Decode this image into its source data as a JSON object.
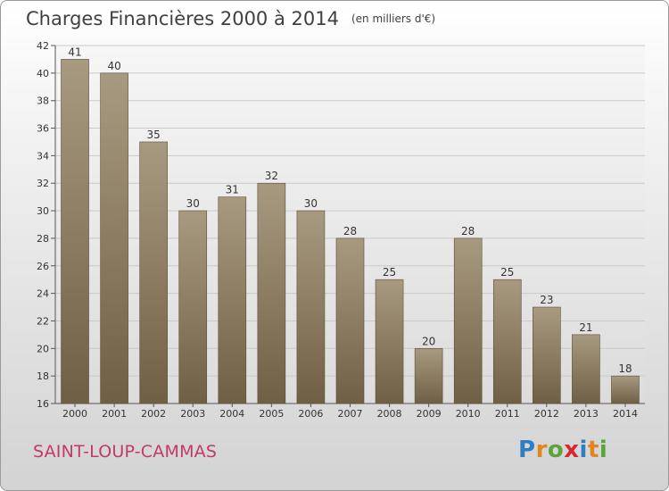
{
  "header": {
    "title": "Charges Financières 2000 à 2014",
    "subtitle": "(en milliers d'€)"
  },
  "footer": {
    "commune": "SAINT-LOUP-CAMMAS",
    "logo_letters": [
      "P",
      "r",
      "o",
      "x",
      "i",
      "t",
      "i"
    ],
    "logo_colors": [
      "#2e7fc2",
      "#e1861f",
      "#5aa53a",
      "#d7282f",
      "#2e7fc2",
      "#e1861f",
      "#5aa53a"
    ]
  },
  "colors": {
    "bar_top": "#a89a80",
    "bar_bottom": "#6f5f45",
    "title": "#404040",
    "commune": "#c23a69",
    "grid": "#c9c9c9"
  },
  "chart_data": {
    "type": "bar",
    "title": "Charges Financières 2000 à 2014",
    "subtitle": "(en milliers d'€)",
    "xlabel": "",
    "ylabel": "",
    "categories": [
      "2000",
      "2001",
      "2002",
      "2003",
      "2004",
      "2005",
      "2006",
      "2007",
      "2008",
      "2009",
      "2010",
      "2011",
      "2012",
      "2013",
      "2014"
    ],
    "values": [
      41,
      40,
      35,
      30,
      31,
      32,
      30,
      28,
      25,
      20,
      28,
      25,
      23,
      21,
      18
    ],
    "ylim": [
      16,
      42
    ],
    "yticks": [
      16,
      18,
      20,
      22,
      24,
      26,
      28,
      30,
      32,
      34,
      36,
      38,
      40,
      42
    ],
    "grid": true,
    "legend": "none",
    "data_labels": true
  }
}
